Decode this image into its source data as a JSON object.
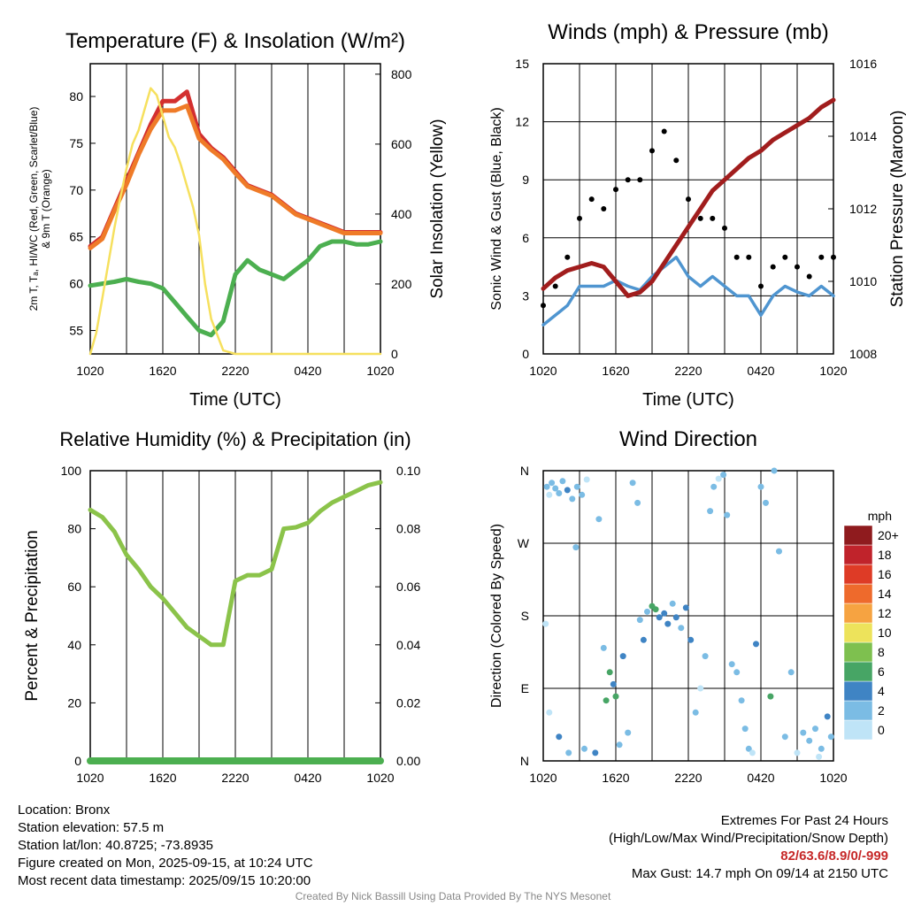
{
  "panels": {
    "temp": {
      "title": "Temperature (F) & Insolation (W/m²)",
      "ylabel_left": [
        "2m T, Tₐ, HI/WC (Red, Green, Scarlet/Blue)",
        "& 9m T (Orange)"
      ],
      "ylabel_right": "Solar Insolation (Yellow)",
      "xlabel": "Time (UTC)"
    },
    "wind": {
      "title": "Winds (mph) & Pressure (mb)",
      "ylabel_left": "Sonic Wind & Gust (Blue, Black)",
      "ylabel_right": "Station Pressure (Maroon)",
      "xlabel": "Time (UTC)"
    },
    "rh": {
      "title": "Relative Humidity (%) & Precipitation (in)",
      "ylabel_left": "Percent & Precipitation"
    },
    "dir": {
      "title": "Wind Direction",
      "ylabel_left": "Direction (Colored By Speed)",
      "colorbar_title": "mph"
    }
  },
  "chart_data": [
    {
      "type": "line",
      "title": "Temperature (F) & Insolation (W/m²)",
      "xlabel": "Time (UTC)",
      "x_ticks": [
        "1020",
        "1620",
        "2220",
        "0420",
        "1020"
      ],
      "x_range_hours": [
        0,
        24
      ],
      "ylim": [
        52.5,
        83.5
      ],
      "y_ticks": [
        55,
        60,
        65,
        70,
        75,
        80
      ],
      "y2lim": [
        0,
        830
      ],
      "y2_ticks": [
        0,
        200,
        400,
        600,
        800
      ],
      "series": [
        {
          "color": "#d32f2f",
          "axis": "left",
          "x": [
            0,
            1,
            2,
            3,
            4,
            5,
            6,
            7,
            8,
            9,
            10,
            11,
            12,
            13,
            14,
            15,
            16,
            17,
            18,
            19,
            20,
            21,
            22,
            23,
            24
          ],
          "values": [
            64,
            65,
            68,
            71,
            74,
            77,
            79.5,
            79.5,
            80.5,
            76,
            74.5,
            73.5,
            72,
            70.5,
            70,
            69.5,
            68.5,
            67.5,
            67,
            66.5,
            66,
            65.5,
            65.5,
            65.5,
            65.5
          ]
        },
        {
          "color": "#ef7b28",
          "axis": "left",
          "x": [
            0,
            1,
            2,
            3,
            4,
            5,
            6,
            7,
            8,
            9,
            10,
            11,
            12,
            13,
            14,
            15,
            16,
            17,
            18,
            19,
            20,
            21,
            22,
            23,
            24
          ],
          "values": [
            63.8,
            64.8,
            67.8,
            70.6,
            73.8,
            76.5,
            78.5,
            78.5,
            79,
            75.5,
            74.3,
            73.3,
            71.8,
            70.4,
            69.9,
            69.4,
            68.4,
            67.4,
            66.9,
            66.4,
            65.9,
            65.4,
            65.4,
            65.4,
            65.4
          ]
        },
        {
          "color": "#4caf50",
          "axis": "left",
          "x": [
            0,
            1,
            2,
            3,
            4,
            5,
            6,
            7,
            8,
            9,
            10,
            11,
            12,
            13,
            14,
            15,
            16,
            17,
            18,
            19,
            20,
            21,
            22,
            23,
            24
          ],
          "values": [
            59.8,
            60,
            60.2,
            60.5,
            60.2,
            60,
            59.5,
            58,
            56.5,
            55,
            54.5,
            56,
            61,
            62.5,
            61.5,
            61,
            60.5,
            61.5,
            62.5,
            64,
            64.5,
            64.5,
            64.2,
            64.2,
            64.5
          ]
        },
        {
          "color": "#f6e05e",
          "axis": "right",
          "x": [
            0,
            0.5,
            1,
            1.5,
            2,
            2.5,
            3,
            3.5,
            4,
            4.5,
            5,
            5.5,
            6,
            6.5,
            7,
            7.5,
            8,
            8.5,
            9,
            9.5,
            10,
            11,
            12,
            24
          ],
          "values": [
            0,
            60,
            160,
            260,
            360,
            450,
            530,
            600,
            640,
            700,
            760,
            740,
            680,
            620,
            590,
            540,
            480,
            420,
            340,
            200,
            100,
            10,
            0,
            0
          ]
        }
      ]
    },
    {
      "type": "line",
      "title": "Winds (mph) & Pressure (mb)",
      "xlabel": "Time (UTC)",
      "x_ticks": [
        "1020",
        "1620",
        "2220",
        "0420",
        "1020"
      ],
      "x_range_hours": [
        0,
        24
      ],
      "ylim": [
        0,
        15
      ],
      "y_ticks": [
        0,
        3,
        6,
        9,
        12,
        15
      ],
      "y2lim": [
        1008,
        1016
      ],
      "y2_ticks": [
        1008,
        1010,
        1012,
        1014,
        1016
      ],
      "series": [
        {
          "name": "Sonic Wind",
          "color": "#4f95d0",
          "axis": "left",
          "x": [
            0,
            1,
            2,
            3,
            4,
            5,
            6,
            7,
            8,
            9,
            10,
            11,
            12,
            13,
            14,
            15,
            16,
            17,
            18,
            19,
            20,
            21,
            22,
            23,
            24
          ],
          "values": [
            1.5,
            2,
            2.5,
            3.5,
            3.5,
            3.5,
            3.8,
            3.5,
            3.3,
            4,
            4.5,
            5,
            4,
            3.5,
            4,
            3.5,
            3,
            3,
            2,
            3,
            3.5,
            3.2,
            3,
            3.5,
            3
          ]
        },
        {
          "name": "Gust",
          "color": "#000000",
          "axis": "left",
          "x": [
            0,
            1,
            2,
            3,
            4,
            5,
            6,
            7,
            8,
            9,
            10,
            11,
            12,
            13,
            14,
            15,
            16,
            17,
            18,
            19,
            20,
            21,
            22,
            23,
            24
          ],
          "values": [
            2.5,
            3.5,
            5,
            7,
            8,
            7.5,
            8.5,
            9,
            9,
            10.5,
            11.5,
            10,
            8,
            7,
            7,
            6.5,
            5,
            5,
            3.5,
            4.5,
            5,
            4.5,
            4,
            5,
            5
          ]
        },
        {
          "name": "Station Pressure",
          "color": "#a11d1d",
          "axis": "right",
          "x": [
            0,
            1,
            2,
            3,
            4,
            5,
            6,
            7,
            8,
            9,
            10,
            11,
            12,
            13,
            14,
            15,
            16,
            17,
            18,
            19,
            20,
            21,
            22,
            23,
            24
          ],
          "values": [
            1009.8,
            1010.1,
            1010.3,
            1010.4,
            1010.5,
            1010.4,
            1010.0,
            1009.6,
            1009.7,
            1010.0,
            1010.5,
            1011.0,
            1011.5,
            1012.0,
            1012.5,
            1012.8,
            1013.1,
            1013.4,
            1013.6,
            1013.9,
            1014.1,
            1014.3,
            1014.5,
            1014.8,
            1015.0
          ]
        }
      ]
    },
    {
      "type": "line",
      "title": "Relative Humidity (%) & Precipitation (in)",
      "x_ticks": [
        "1020",
        "1620",
        "2220",
        "0420",
        "1020"
      ],
      "x_range_hours": [
        0,
        24
      ],
      "ylim": [
        0,
        100
      ],
      "y_ticks": [
        0,
        20,
        40,
        60,
        80,
        100
      ],
      "y2lim": [
        0,
        0.1
      ],
      "y2_ticks": [
        "0.00",
        "0.02",
        "0.04",
        "0.06",
        "0.08",
        "0.10"
      ],
      "series": [
        {
          "color": "#8bc34a",
          "axis": "left",
          "x": [
            0,
            1,
            2,
            3,
            4,
            5,
            6,
            7,
            8,
            9,
            10,
            11,
            12,
            13,
            14,
            15,
            16,
            17,
            18,
            19,
            20,
            21,
            22,
            23,
            24
          ],
          "values": [
            86.5,
            84,
            79,
            71,
            66,
            60,
            56,
            51,
            46,
            43,
            40,
            40,
            62,
            64,
            64,
            66,
            80,
            80.5,
            82,
            86,
            89,
            91,
            93,
            95,
            96
          ]
        },
        {
          "color": "#4caf50",
          "axis": "right",
          "x": [
            0,
            24
          ],
          "values": [
            0,
            0
          ]
        }
      ]
    },
    {
      "type": "scatter",
      "title": "Wind Direction",
      "x_ticks": [
        "1020",
        "1620",
        "2220",
        "0420",
        "1020"
      ],
      "x_range_hours": [
        0,
        24
      ],
      "y_tick_labels": [
        "N",
        "E",
        "S",
        "W",
        "N"
      ],
      "ylim_degrees": [
        0,
        360
      ],
      "colorbar": {
        "title": "mph",
        "labels": [
          "0",
          "2",
          "4",
          "6",
          "8",
          "10",
          "12",
          "14",
          "16",
          "18",
          "20+"
        ],
        "colors": [
          "#bfe4f7",
          "#7bbce4",
          "#3f84c4",
          "#47a565",
          "#7ec04f",
          "#ede35b",
          "#f6a341",
          "#ee6a2c",
          "#de3b26",
          "#c0232b",
          "#8f1b1e"
        ]
      },
      "points": [
        {
          "x": 0.3,
          "deg": 340,
          "speed": 2
        },
        {
          "x": 0.5,
          "deg": 330,
          "speed": 1
        },
        {
          "x": 0.7,
          "deg": 345,
          "speed": 2
        },
        {
          "x": 1.0,
          "deg": 338,
          "speed": 3
        },
        {
          "x": 1.3,
          "deg": 332,
          "speed": 2
        },
        {
          "x": 1.6,
          "deg": 347,
          "speed": 2
        },
        {
          "x": 2.0,
          "deg": 336,
          "speed": 4
        },
        {
          "x": 2.4,
          "deg": 325,
          "speed": 3
        },
        {
          "x": 2.8,
          "deg": 340,
          "speed": 2
        },
        {
          "x": 3.2,
          "deg": 330,
          "speed": 2
        },
        {
          "x": 3.6,
          "deg": 349,
          "speed": 1
        },
        {
          "x": 0.2,
          "deg": 170,
          "speed": 1
        },
        {
          "x": 0.5,
          "deg": 60,
          "speed": 1
        },
        {
          "x": 1.3,
          "deg": 30,
          "speed": 4
        },
        {
          "x": 2.1,
          "deg": 10,
          "speed": 2
        },
        {
          "x": 2.7,
          "deg": 265,
          "speed": 3
        },
        {
          "x": 3.4,
          "deg": 15,
          "speed": 3
        },
        {
          "x": 4.3,
          "deg": 10,
          "speed": 4
        },
        {
          "x": 4.6,
          "deg": 300,
          "speed": 2
        },
        {
          "x": 5.0,
          "deg": 140,
          "speed": 3
        },
        {
          "x": 5.2,
          "deg": 75,
          "speed": 6
        },
        {
          "x": 5.5,
          "deg": 110,
          "speed": 6
        },
        {
          "x": 5.8,
          "deg": 95,
          "speed": 4
        },
        {
          "x": 6.0,
          "deg": 80,
          "speed": 6
        },
        {
          "x": 6.3,
          "deg": 20,
          "speed": 3
        },
        {
          "x": 6.6,
          "deg": 130,
          "speed": 4
        },
        {
          "x": 7.0,
          "deg": 35,
          "speed": 2
        },
        {
          "x": 7.4,
          "deg": 345,
          "speed": 2
        },
        {
          "x": 7.8,
          "deg": 320,
          "speed": 2
        },
        {
          "x": 8.0,
          "deg": 175,
          "speed": 3
        },
        {
          "x": 8.3,
          "deg": 150,
          "speed": 4
        },
        {
          "x": 8.6,
          "deg": 185,
          "speed": 3
        },
        {
          "x": 9.0,
          "deg": 192,
          "speed": 6
        },
        {
          "x": 9.3,
          "deg": 188,
          "speed": 6
        },
        {
          "x": 9.6,
          "deg": 178,
          "speed": 4
        },
        {
          "x": 10.0,
          "deg": 183,
          "speed": 5
        },
        {
          "x": 10.3,
          "deg": 170,
          "speed": 4
        },
        {
          "x": 10.7,
          "deg": 195,
          "speed": 3
        },
        {
          "x": 11.0,
          "deg": 178,
          "speed": 4
        },
        {
          "x": 11.4,
          "deg": 165,
          "speed": 3
        },
        {
          "x": 11.8,
          "deg": 190,
          "speed": 4
        },
        {
          "x": 12.2,
          "deg": 150,
          "speed": 4
        },
        {
          "x": 12.6,
          "deg": 60,
          "speed": 2
        },
        {
          "x": 13.0,
          "deg": 90,
          "speed": 1
        },
        {
          "x": 13.4,
          "deg": 130,
          "speed": 2
        },
        {
          "x": 13.8,
          "deg": 310,
          "speed": 2
        },
        {
          "x": 14.1,
          "deg": 340,
          "speed": 2
        },
        {
          "x": 14.5,
          "deg": 350,
          "speed": 1
        },
        {
          "x": 14.9,
          "deg": 355,
          "speed": 2
        },
        {
          "x": 15.2,
          "deg": 305,
          "speed": 2
        },
        {
          "x": 15.6,
          "deg": 120,
          "speed": 3
        },
        {
          "x": 16.0,
          "deg": 110,
          "speed": 2
        },
        {
          "x": 16.4,
          "deg": 75,
          "speed": 2
        },
        {
          "x": 16.7,
          "deg": 40,
          "speed": 2
        },
        {
          "x": 17.0,
          "deg": 15,
          "speed": 3
        },
        {
          "x": 17.3,
          "deg": 10,
          "speed": 1
        },
        {
          "x": 17.6,
          "deg": 145,
          "speed": 4
        },
        {
          "x": 18.0,
          "deg": 340,
          "speed": 2
        },
        {
          "x": 18.4,
          "deg": 320,
          "speed": 2
        },
        {
          "x": 18.8,
          "deg": 80,
          "speed": 6
        },
        {
          "x": 19.1,
          "deg": 360,
          "speed": 2
        },
        {
          "x": 19.5,
          "deg": 260,
          "speed": 3
        },
        {
          "x": 20.0,
          "deg": 30,
          "speed": 2
        },
        {
          "x": 20.5,
          "deg": 110,
          "speed": 2
        },
        {
          "x": 21.0,
          "deg": 10,
          "speed": 1
        },
        {
          "x": 21.5,
          "deg": 35,
          "speed": 2
        },
        {
          "x": 22.0,
          "deg": 25,
          "speed": 3
        },
        {
          "x": 22.5,
          "deg": 40,
          "speed": 2
        },
        {
          "x": 23.0,
          "deg": 15,
          "speed": 3
        },
        {
          "x": 23.5,
          "deg": 55,
          "speed": 4
        },
        {
          "x": 23.8,
          "deg": 30,
          "speed": 3
        },
        {
          "x": 22.8,
          "deg": 5,
          "speed": 1
        }
      ]
    }
  ],
  "info": {
    "location": "Location: Bronx",
    "elevation": "Station elevation: 57.5 m",
    "latlon": "Station lat/lon: 40.8725; -73.8935",
    "created": "Figure created on Mon, 2025-09-15, at 10:24 UTC",
    "recent": "Most recent data timestamp: 2025/09/15 10:20:00",
    "extremes_title": "Extremes For Past 24 Hours",
    "extremes_sub": "(High/Low/Max Wind/Precipitation/Snow Depth)",
    "extremes_values": "82/63.6/8.9/0/-999",
    "max_gust": "Max Gust: 14.7 mph On 09/14 at 2150 UTC",
    "credit": "Created By Nick Bassill Using Data Provided By The NYS Mesonet"
  }
}
